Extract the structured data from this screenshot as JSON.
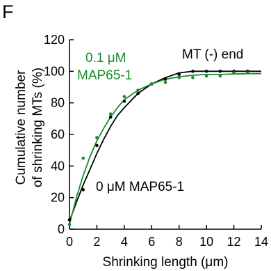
{
  "panel_label": "F",
  "chart_data": {
    "type": "scatter",
    "title": "",
    "xlabel": "Shrinking length (μm)",
    "ylabel_line1": "Cumulative number",
    "ylabel_line2": "of shrinking MTs (%)",
    "xlim": [
      0,
      14
    ],
    "ylim": [
      0,
      120
    ],
    "xticks": [
      0,
      2,
      4,
      6,
      8,
      10,
      12,
      14
    ],
    "yticks": [
      0,
      20,
      40,
      60,
      80,
      100,
      120
    ],
    "grid": false,
    "annotations": {
      "end_label": "MT (-) end",
      "green_line1": "0.1 μM",
      "green_line2": "MAP65-1",
      "black_label": "0 μM MAP65-1"
    },
    "series": [
      {
        "name": "0 μM MAP65-1",
        "color": "#000000",
        "points": [
          [
            0,
            6
          ],
          [
            1,
            25
          ],
          [
            2,
            53
          ],
          [
            3,
            71
          ],
          [
            4,
            81
          ],
          [
            5,
            86
          ],
          [
            6,
            92
          ],
          [
            7,
            95
          ],
          [
            8,
            98
          ],
          [
            9,
            100
          ],
          [
            10,
            100
          ],
          [
            11,
            100
          ],
          [
            12,
            100
          ],
          [
            13,
            100
          ]
        ],
        "fit": [
          [
            0,
            5
          ],
          [
            0.5,
            17
          ],
          [
            1,
            28
          ],
          [
            1.5,
            38
          ],
          [
            2,
            48
          ],
          [
            2.5,
            57
          ],
          [
            3,
            65
          ],
          [
            3.5,
            72
          ],
          [
            4,
            77
          ],
          [
            5,
            86
          ],
          [
            6,
            92
          ],
          [
            7,
            96
          ],
          [
            8,
            99
          ],
          [
            9,
            100
          ],
          [
            10,
            100
          ],
          [
            11,
            100
          ],
          [
            12,
            100
          ],
          [
            13,
            100
          ],
          [
            14,
            100
          ]
        ]
      },
      {
        "name": "0.1 μM MAP65-1",
        "color": "#1a8a2e",
        "points": [
          [
            0,
            3
          ],
          [
            1,
            45
          ],
          [
            2,
            58
          ],
          [
            3,
            73
          ],
          [
            4,
            84
          ],
          [
            5,
            88
          ],
          [
            6,
            92
          ],
          [
            7,
            93
          ],
          [
            8,
            96
          ],
          [
            9,
            96
          ],
          [
            10,
            97
          ],
          [
            11,
            97
          ],
          [
            12,
            99
          ],
          [
            13,
            99
          ]
        ],
        "fit": [
          [
            0,
            3
          ],
          [
            0.5,
            20
          ],
          [
            1,
            34
          ],
          [
            1.5,
            46
          ],
          [
            2,
            56
          ],
          [
            2.5,
            64
          ],
          [
            3,
            71
          ],
          [
            3.5,
            77
          ],
          [
            4,
            82
          ],
          [
            5,
            88
          ],
          [
            6,
            92
          ],
          [
            7,
            95
          ],
          [
            8,
            96.5
          ],
          [
            9,
            97.5
          ],
          [
            10,
            98
          ],
          [
            11,
            98
          ],
          [
            12,
            98.3
          ],
          [
            13,
            98.5
          ],
          [
            14,
            98.5
          ]
        ]
      }
    ]
  }
}
